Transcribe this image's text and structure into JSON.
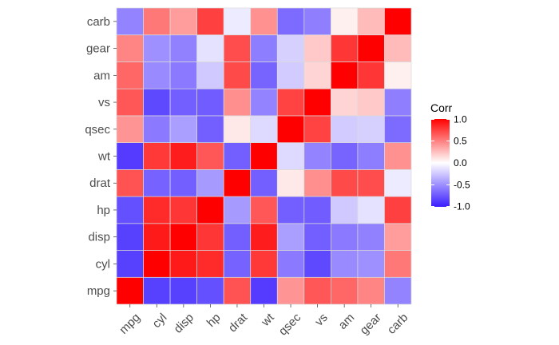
{
  "chart_data": {
    "type": "heatmap",
    "title": "",
    "xlabel": "",
    "ylabel": "",
    "x_categories": [
      "mpg",
      "cyl",
      "disp",
      "hp",
      "drat",
      "wt",
      "qsec",
      "vs",
      "am",
      "gear",
      "carb"
    ],
    "y_categories": [
      "mpg",
      "cyl",
      "disp",
      "hp",
      "drat",
      "wt",
      "qsec",
      "vs",
      "am",
      "gear",
      "carb"
    ],
    "values": [
      [
        1.0,
        -0.85,
        -0.85,
        -0.78,
        0.68,
        -0.87,
        0.42,
        0.66,
        0.6,
        0.48,
        -0.55
      ],
      [
        -0.85,
        1.0,
        0.9,
        0.83,
        -0.7,
        0.78,
        -0.59,
        -0.81,
        -0.52,
        -0.49,
        0.53
      ],
      [
        -0.85,
        0.9,
        1.0,
        0.79,
        -0.71,
        0.89,
        -0.43,
        -0.71,
        -0.59,
        -0.56,
        0.39
      ],
      [
        -0.78,
        0.83,
        0.79,
        1.0,
        -0.45,
        0.66,
        -0.71,
        -0.72,
        -0.24,
        -0.13,
        0.75
      ],
      [
        0.68,
        -0.7,
        -0.71,
        -0.45,
        1.0,
        -0.71,
        0.09,
        0.44,
        0.71,
        0.7,
        -0.09
      ],
      [
        -0.87,
        0.78,
        0.89,
        0.66,
        -0.71,
        1.0,
        -0.17,
        -0.55,
        -0.69,
        -0.58,
        0.43
      ],
      [
        0.42,
        -0.59,
        -0.43,
        -0.71,
        0.09,
        -0.17,
        1.0,
        0.74,
        -0.23,
        -0.21,
        -0.66
      ],
      [
        0.66,
        -0.81,
        -0.71,
        -0.72,
        0.44,
        -0.55,
        0.74,
        1.0,
        0.17,
        0.21,
        -0.57
      ],
      [
        0.6,
        -0.52,
        -0.59,
        -0.24,
        0.71,
        -0.69,
        -0.23,
        0.17,
        1.0,
        0.79,
        0.06
      ],
      [
        0.48,
        -0.49,
        -0.56,
        -0.13,
        0.7,
        -0.58,
        -0.21,
        0.21,
        0.79,
        1.0,
        0.27
      ],
      [
        -0.55,
        0.53,
        0.39,
        0.75,
        -0.09,
        0.43,
        -0.66,
        -0.57,
        0.06,
        0.27,
        1.0
      ]
    ],
    "legend": {
      "title": "Corr",
      "placement": "right",
      "ticks": [
        "1.0",
        "0.5",
        "0.0",
        "-0.5",
        "-1.0"
      ],
      "range": [
        -1,
        1
      ],
      "colors": {
        "low": "#3A1EFF",
        "mid": "#FFFFFF",
        "high": "#FF0000"
      }
    },
    "grid": false
  }
}
